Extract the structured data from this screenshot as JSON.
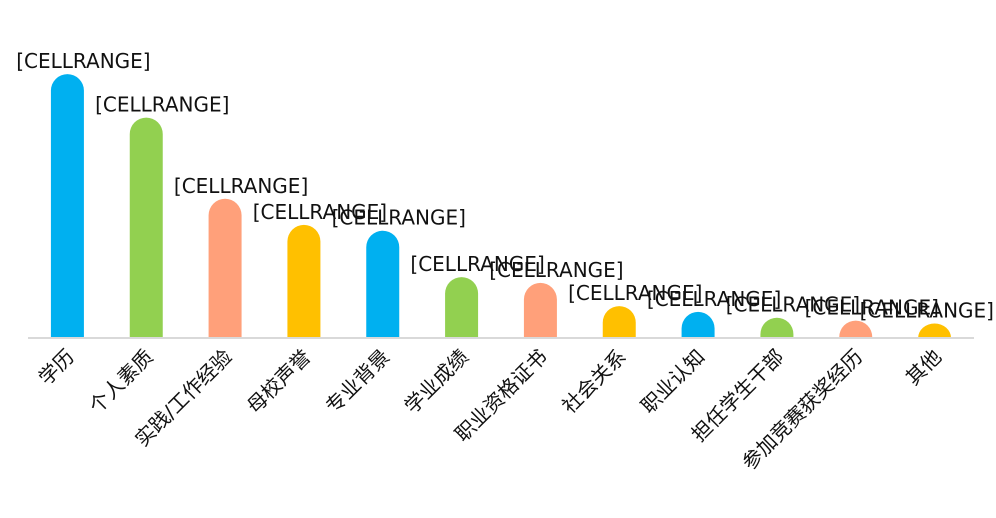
{
  "chart_data": {
    "type": "bar",
    "title": "",
    "xlabel": "",
    "ylabel": "",
    "ylim": [
      0,
      100
    ],
    "grid": false,
    "legend": "none",
    "categories": [
      "学历",
      "个人素质",
      "实践/工作经验",
      "母校声誉",
      "专业背景",
      "学业成绩",
      "职业资格证书",
      "社会关系",
      "职业认知",
      "担任学生干部",
      "参加竞赛获奖经历",
      "其他"
    ],
    "values": [
      91,
      76,
      48,
      39,
      37,
      21,
      19,
      11,
      9,
      7,
      6,
      5
    ],
    "data_labels": [
      "[CELLRANGE]",
      "[CELLRANGE]",
      "[CELLRANGE]",
      "[CELLRANGE]",
      "[CELLRANGE]",
      "[CELLRANGE]",
      "[CELLRANGE]",
      "[CELLRANGE]",
      "[CELLRANGE]",
      "[CELLRANGE]",
      "[CELLRANGE]",
      "[CELLRANGE]"
    ],
    "colors": [
      "#00b0f0",
      "#92d050",
      "#ffa07a",
      "#ffc000",
      "#00b0f0",
      "#92d050",
      "#ffa07a",
      "#ffc000",
      "#00b0f0",
      "#92d050",
      "#ffa07a",
      "#ffc000"
    ],
    "axis_color": "#d9d9d9"
  }
}
